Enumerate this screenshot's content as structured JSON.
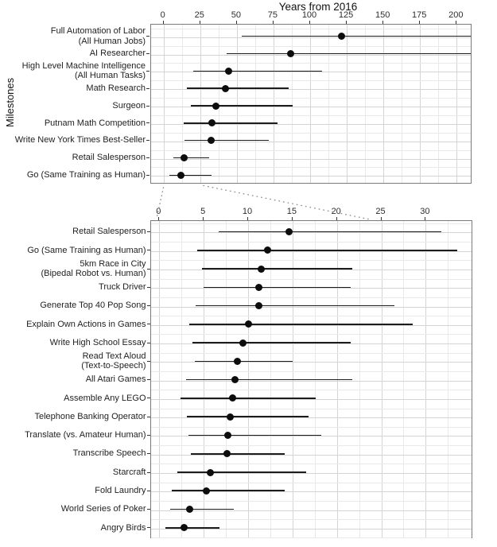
{
  "chart_data": [
    {
      "type": "scatter",
      "panel": "top",
      "title": "Years from 2016",
      "xlabel": "Years from 2016",
      "ylabel": "Milestones",
      "legend": "none",
      "grid": "on",
      "x_ticks": [
        0,
        25,
        50,
        75,
        100,
        125,
        150,
        175,
        200
      ],
      "xlim": [
        -8.9,
        210.6
      ],
      "marker": "black dot with horizontal interval line",
      "points": [
        {
          "label": [
            "Full Automation of Labor",
            "(All Human Jobs)"
          ],
          "median": 122,
          "lo": 54,
          "hi": 210.6,
          "hi_clipped": true
        },
        {
          "label": [
            "AI Researcher"
          ],
          "median": 87.5,
          "lo": 43.5,
          "hi": 210.6,
          "hi_clipped": true
        },
        {
          "label": [
            "High Level Machine Intelligence",
            "(All Human Tasks)"
          ],
          "median": 45,
          "lo": 21,
          "hi": 108.5,
          "hi_clipped": false
        },
        {
          "label": [
            "Math Research"
          ],
          "median": 43,
          "lo": 16.5,
          "hi": 86,
          "hi_clipped": false
        },
        {
          "label": [
            "Surgeon"
          ],
          "median": 36.5,
          "lo": 19,
          "hi": 88.5,
          "hi_clipped": false
        },
        {
          "label": [
            "Putnam Math Competition"
          ],
          "median": 33.5,
          "lo": 14,
          "hi": 78.5,
          "hi_clipped": false
        },
        {
          "label": [
            "Write New York Times Best-Seller"
          ],
          "median": 33,
          "lo": 14.7,
          "hi": 72.5,
          "hi_clipped": false
        },
        {
          "label": [
            "Retail Salesperson"
          ],
          "median": 14.7,
          "lo": 7,
          "hi": 31.5,
          "hi_clipped": false
        },
        {
          "label": [
            "Go (Same Training as Human)"
          ],
          "median": 12.5,
          "lo": 4.5,
          "hi": 33.5,
          "hi_clipped": false
        }
      ]
    },
    {
      "type": "scatter",
      "panel": "bottom",
      "title": "",
      "xlabel": "",
      "ylabel": "",
      "legend": "none",
      "grid": "on",
      "x_ticks": [
        0,
        5,
        10,
        15,
        20,
        25,
        30
      ],
      "xlim": [
        -0.9,
        35.4
      ],
      "marker": "black dot with horizontal interval line",
      "points": [
        {
          "label": [
            "Retail Salesperson"
          ],
          "median": 14.7,
          "lo": 6.8,
          "hi": 31.8,
          "hi_clipped": false
        },
        {
          "label": [
            "Go (Same Training as Human)"
          ],
          "median": 12.3,
          "lo": 4.4,
          "hi": 33.6,
          "hi_clipped": false
        },
        {
          "label": [
            "5km Race in City",
            "(Bipedal Robot vs. Human)"
          ],
          "median": 11.6,
          "lo": 4.9,
          "hi": 21.8,
          "hi_clipped": false
        },
        {
          "label": [
            "Truck Driver"
          ],
          "median": 11.3,
          "lo": 5.1,
          "hi": 21.6,
          "hi_clipped": false
        },
        {
          "label": [
            "Generate Top 40 Pop Song"
          ],
          "median": 11.3,
          "lo": 4.2,
          "hi": 26.6,
          "hi_clipped": false
        },
        {
          "label": [
            "Explain Own Actions in Games"
          ],
          "median": 10.1,
          "lo": 3.5,
          "hi": 28.6,
          "hi_clipped": false
        },
        {
          "label": [
            "Write High School Essay"
          ],
          "median": 9.5,
          "lo": 3.8,
          "hi": 21.6,
          "hi_clipped": false
        },
        {
          "label": [
            "Read Text Aloud",
            "(Text-to-Speech)"
          ],
          "median": 8.9,
          "lo": 4.1,
          "hi": 15.1,
          "hi_clipped": false
        },
        {
          "label": [
            "All Atari Games"
          ],
          "median": 8.6,
          "lo": 3.1,
          "hi": 21.8,
          "hi_clipped": false
        },
        {
          "label": [
            "Assemble Any LEGO"
          ],
          "median": 8.3,
          "lo": 2.5,
          "hi": 17.7,
          "hi_clipped": false
        },
        {
          "label": [
            "Telephone Banking Operator"
          ],
          "median": 8.1,
          "lo": 3.2,
          "hi": 16.9,
          "hi_clipped": false
        },
        {
          "label": [
            "Translate (vs. Amateur Human)"
          ],
          "median": 7.8,
          "lo": 3.4,
          "hi": 18.3,
          "hi_clipped": false
        },
        {
          "label": [
            "Transcribe Speech"
          ],
          "median": 7.7,
          "lo": 3.6,
          "hi": 14.2,
          "hi_clipped": false
        },
        {
          "label": [
            "Starcraft"
          ],
          "median": 5.8,
          "lo": 2.1,
          "hi": 16.6,
          "hi_clipped": false
        },
        {
          "label": [
            "Fold Laundry"
          ],
          "median": 5.4,
          "lo": 1.5,
          "hi": 14.2,
          "hi_clipped": false
        },
        {
          "label": [
            "World Series of Poker"
          ],
          "median": 3.5,
          "lo": 1.3,
          "hi": 8.5,
          "hi_clipped": false
        },
        {
          "label": [
            "Angry Birds"
          ],
          "median": 2.9,
          "lo": 0.8,
          "hi": 6.9,
          "hi_clipped": false
        }
      ]
    }
  ],
  "colors": {
    "point": "#0d0d0d",
    "interval": "#1c1c1c",
    "grid_major": "#d4d4d4",
    "grid_minor": "#e9e9e9",
    "panel_border": "#7b7b7b",
    "connector": "#8f8f8f",
    "text": "#1f1f1f"
  }
}
